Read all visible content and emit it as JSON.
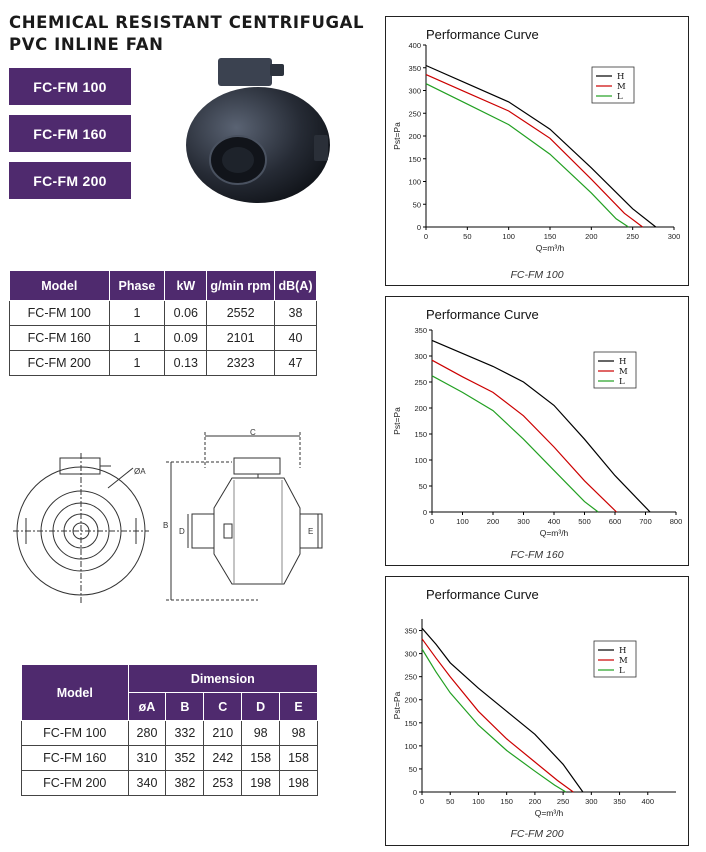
{
  "header": {
    "title_line1": "CHEMICAL RESISTANT CENTRIFUGAL",
    "title_line2": "PVC INLINE FAN"
  },
  "models": [
    "FC-FM 100",
    "FC-FM 160",
    "FC-FM 200"
  ],
  "spec_table": {
    "headers": [
      "Model",
      "Phase",
      "kW",
      "g/min rpm",
      "dB(A)"
    ],
    "rows": [
      [
        "FC-FM 100",
        "1",
        "0.06",
        "2552",
        "38"
      ],
      [
        "FC-FM 160",
        "1",
        "0.09",
        "2101",
        "40"
      ],
      [
        "FC-FM 200",
        "1",
        "0.13",
        "2323",
        "47"
      ]
    ]
  },
  "drawing": {
    "labels": {
      "a": "ØA",
      "b": "B",
      "c": "C",
      "d": "D",
      "e": "E"
    }
  },
  "dimension_table": {
    "model_header": "Model",
    "group_header": "Dimension",
    "headers": [
      "øA",
      "B",
      "C",
      "D",
      "E"
    ],
    "rows": [
      [
        "FC-FM 100",
        "280",
        "332",
        "210",
        "98",
        "98"
      ],
      [
        "FC-FM 160",
        "310",
        "352",
        "242",
        "158",
        "158"
      ],
      [
        "FC-FM 200",
        "340",
        "382",
        "253",
        "198",
        "198"
      ]
    ]
  },
  "colors": {
    "brand": "#4f2a6e",
    "H": "#000000",
    "M": "#cc0000",
    "L": "#22a022"
  },
  "chart_data": [
    {
      "type": "line",
      "title": "Performance Curve",
      "caption": "FC-FM 100",
      "xlabel": "Q=m³/h",
      "ylabel": "Pst=Pa",
      "xlim": [
        0,
        300
      ],
      "ylim": [
        0,
        400
      ],
      "xticks": [
        0,
        50,
        100,
        150,
        200,
        250,
        300
      ],
      "yticks": [
        0,
        50,
        100,
        150,
        200,
        250,
        300,
        350,
        400
      ],
      "legend_position": "top-right",
      "series": [
        {
          "name": "H",
          "x": [
            0,
            50,
            100,
            150,
            200,
            250,
            278
          ],
          "y": [
            355,
            315,
            275,
            215,
            130,
            40,
            0
          ]
        },
        {
          "name": "M",
          "x": [
            0,
            50,
            100,
            150,
            200,
            240,
            262
          ],
          "y": [
            335,
            295,
            255,
            195,
            105,
            30,
            0
          ]
        },
        {
          "name": "L",
          "x": [
            0,
            50,
            100,
            150,
            200,
            230,
            245
          ],
          "y": [
            315,
            270,
            225,
            160,
            75,
            18,
            0
          ]
        }
      ]
    },
    {
      "type": "line",
      "title": "Performance Curve",
      "caption": "FC-FM 160",
      "xlabel": "Q=m³/h",
      "ylabel": "Pst=Pa",
      "xlim": [
        0,
        800
      ],
      "ylim": [
        0,
        350
      ],
      "xticks": [
        0,
        100,
        200,
        300,
        400,
        500,
        600,
        700,
        800
      ],
      "yticks": [
        0,
        50,
        100,
        150,
        200,
        250,
        300,
        350
      ],
      "legend_position": "top-right",
      "series": [
        {
          "name": "H",
          "x": [
            0,
            100,
            200,
            300,
            400,
            500,
            600,
            715
          ],
          "y": [
            330,
            305,
            280,
            250,
            205,
            140,
            70,
            0
          ]
        },
        {
          "name": "M",
          "x": [
            0,
            100,
            200,
            300,
            400,
            500,
            605
          ],
          "y": [
            292,
            260,
            230,
            185,
            125,
            60,
            0
          ]
        },
        {
          "name": "L",
          "x": [
            0,
            100,
            200,
            300,
            400,
            500,
            545
          ],
          "y": [
            262,
            230,
            195,
            140,
            80,
            20,
            0
          ]
        }
      ]
    },
    {
      "type": "line",
      "title": "Performance Curve",
      "caption": "FC-FM 200",
      "xlabel": "Q=m³/h",
      "ylabel": "Pst=Pa",
      "xlim": [
        0,
        450
      ],
      "ylim": [
        0,
        375
      ],
      "xticks": [
        0,
        50,
        100,
        150,
        200,
        250,
        300,
        350,
        400
      ],
      "yticks": [
        0,
        50,
        100,
        150,
        200,
        250,
        300,
        350
      ],
      "legend_position": "top-right",
      "series": [
        {
          "name": "H",
          "x": [
            0,
            25,
            50,
            100,
            150,
            200,
            250,
            285
          ],
          "y": [
            355,
            320,
            280,
            225,
            175,
            125,
            60,
            0
          ]
        },
        {
          "name": "M",
          "x": [
            0,
            25,
            50,
            100,
            150,
            200,
            240,
            268
          ],
          "y": [
            332,
            290,
            250,
            175,
            115,
            65,
            25,
            0
          ]
        },
        {
          "name": "L",
          "x": [
            0,
            25,
            50,
            100,
            150,
            200,
            235,
            255
          ],
          "y": [
            310,
            260,
            215,
            145,
            90,
            45,
            15,
            0
          ]
        }
      ]
    }
  ]
}
